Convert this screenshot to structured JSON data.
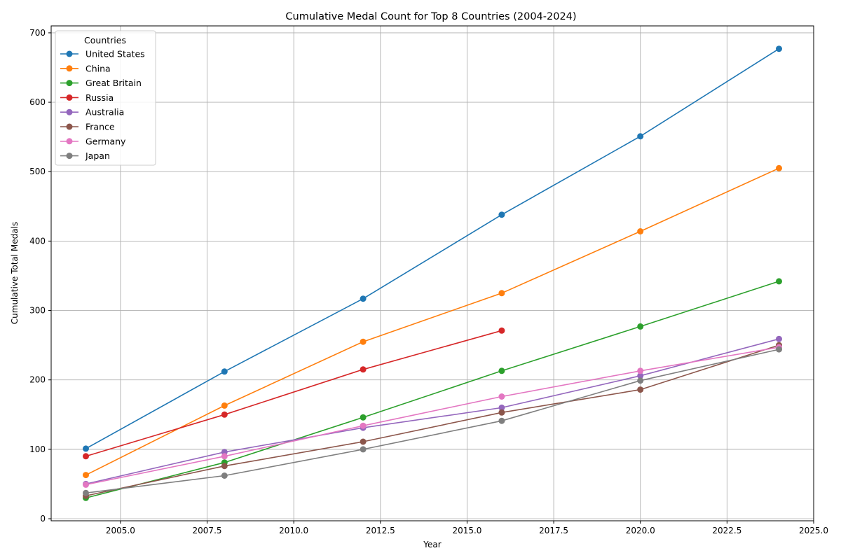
{
  "chart_data": {
    "type": "line",
    "title": "Cumulative Medal Count for Top 8 Countries (2004-2024)",
    "xlabel": "Year",
    "ylabel": "Cumulative Total Medals",
    "xlim": [
      2003,
      2025
    ],
    "ylim": [
      -3,
      710
    ],
    "x_ticks": [
      2005.0,
      2007.5,
      2010.0,
      2012.5,
      2015.0,
      2017.5,
      2020.0,
      2022.5,
      2025.0
    ],
    "x_tick_labels": [
      "2005.0",
      "2007.5",
      "2010.0",
      "2012.5",
      "2015.0",
      "2017.5",
      "2020.0",
      "2022.5",
      "2025.0"
    ],
    "y_ticks": [
      0,
      100,
      200,
      300,
      400,
      500,
      600,
      700
    ],
    "y_tick_labels": [
      "0",
      "100",
      "200",
      "300",
      "400",
      "500",
      "600",
      "700"
    ],
    "grid": true,
    "legend": {
      "title": "Countries",
      "placement": "top-left"
    },
    "series": [
      {
        "name": "United States",
        "color": "#1f77b4",
        "x": [
          2004,
          2008,
          2012,
          2016,
          2020,
          2024
        ],
        "values": [
          101,
          212,
          317,
          438,
          551,
          677
        ]
      },
      {
        "name": "China",
        "color": "#ff7f0e",
        "x": [
          2004,
          2008,
          2012,
          2016,
          2020,
          2024
        ],
        "values": [
          63,
          163,
          255,
          325,
          414,
          505
        ]
      },
      {
        "name": "Great Britain",
        "color": "#2ca02c",
        "x": [
          2004,
          2008,
          2012,
          2016,
          2020,
          2024
        ],
        "values": [
          30,
          81,
          146,
          213,
          277,
          342
        ]
      },
      {
        "name": "Russia",
        "color": "#d62728",
        "x": [
          2004,
          2008,
          2012,
          2016
        ],
        "values": [
          90,
          150,
          215,
          271
        ]
      },
      {
        "name": "Australia",
        "color": "#9467bd",
        "x": [
          2004,
          2008,
          2012,
          2016,
          2020,
          2024
        ],
        "values": [
          50,
          96,
          131,
          160,
          206,
          259
        ]
      },
      {
        "name": "France",
        "color": "#8c564b",
        "x": [
          2004,
          2008,
          2012,
          2016,
          2020,
          2024
        ],
        "values": [
          33,
          76,
          111,
          153,
          186,
          250
        ]
      },
      {
        "name": "Germany",
        "color": "#e377c2",
        "x": [
          2004,
          2008,
          2012,
          2016,
          2020,
          2024
        ],
        "values": [
          49,
          90,
          134,
          176,
          213,
          247
        ]
      },
      {
        "name": "Japan",
        "color": "#7f7f7f",
        "x": [
          2004,
          2008,
          2012,
          2016,
          2020,
          2024
        ],
        "values": [
          37,
          62,
          100,
          141,
          199,
          244
        ]
      }
    ]
  }
}
